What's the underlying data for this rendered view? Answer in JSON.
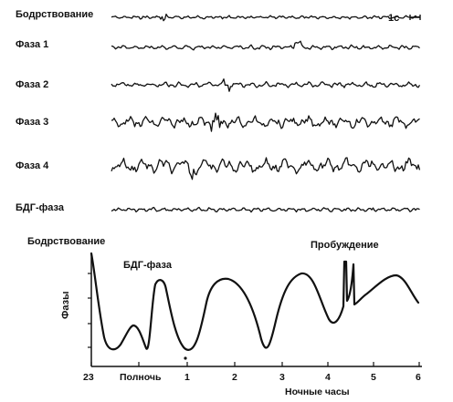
{
  "eeg": {
    "scale_label": "1с",
    "stages": [
      {
        "label": "Бодрствование",
        "amp": 0.9,
        "freq": 0.55
      },
      {
        "label": "Фаза 1",
        "amp": 1.3,
        "freq": 0.45
      },
      {
        "label": "Фаза 2",
        "amp": 1.6,
        "freq": 0.4
      },
      {
        "label": "Фаза 3",
        "amp": 3.4,
        "freq": 0.32
      },
      {
        "label": "Фаза 4",
        "amp": 4.2,
        "freq": 0.28
      },
      {
        "label": "БДГ-фаза",
        "amp": 1.2,
        "freq": 0.5
      }
    ]
  },
  "hypnogram": {
    "annotations": {
      "wake": "Бодрствование",
      "rem": "БДГ-фаза",
      "awakening": "Пробуждение"
    },
    "ylabel": "Фазы",
    "xlabel": "Ночные часы",
    "ticks": [
      "23",
      "Полночь",
      "1",
      "2",
      "3",
      "4",
      "5",
      "6"
    ]
  }
}
